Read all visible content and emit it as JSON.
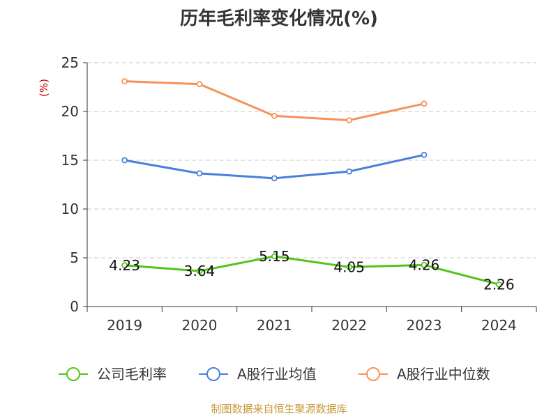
{
  "chart_data": {
    "type": "line",
    "title": "历年毛利率变化情况(%)",
    "ylabel": "(%)",
    "xlabel": "",
    "categories": [
      "2019",
      "2020",
      "2021",
      "2022",
      "2023",
      "2024"
    ],
    "ylim": [
      0,
      25
    ],
    "yticks": [
      0,
      5,
      10,
      15,
      20,
      25
    ],
    "grid": true,
    "legend_position": "bottom",
    "series": [
      {
        "name": "公司毛利率",
        "color": "#52c41a",
        "values": [
          4.23,
          3.64,
          5.15,
          4.05,
          4.26,
          2.26
        ],
        "labels": [
          "4.23",
          "3.64",
          "5.15",
          "4.05",
          "4.26",
          "2.26"
        ]
      },
      {
        "name": "A股行业均值",
        "color": "#4a7fdc",
        "values": [
          15.0,
          13.65,
          13.15,
          13.85,
          15.55,
          null
        ]
      },
      {
        "name": "A股行业中位数",
        "color": "#f5925a",
        "values": [
          23.1,
          22.8,
          19.55,
          19.1,
          20.8,
          null
        ]
      }
    ]
  },
  "source": "制图数据来自恒生聚源数据库"
}
